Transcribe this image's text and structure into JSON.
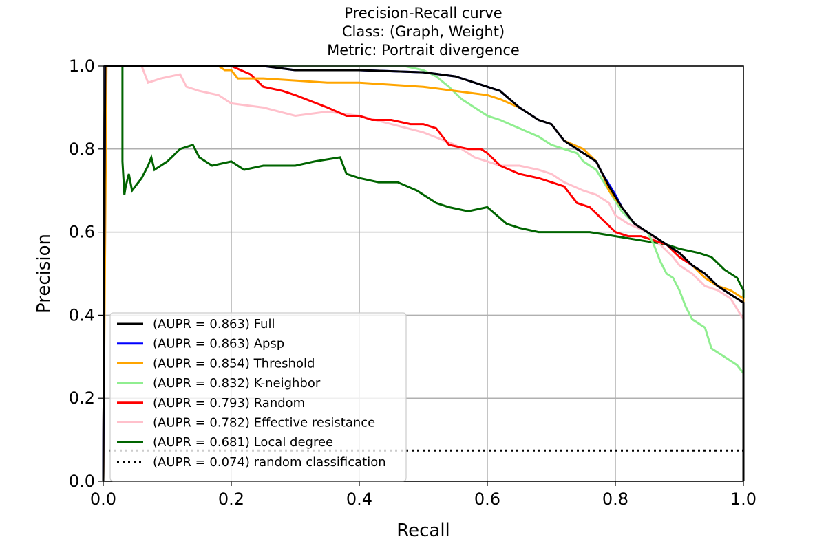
{
  "chart_data": {
    "type": "line",
    "title_lines": [
      "Precision-Recall curve",
      "Class: (Graph, Weight)",
      "Metric: Portrait divergence"
    ],
    "xlabel": "Recall",
    "ylabel": "Precision",
    "xlim": [
      0.0,
      1.0
    ],
    "ylim": [
      0.0,
      1.0
    ],
    "xticks": [
      "0.0",
      "0.2",
      "0.4",
      "0.6",
      "0.8",
      "1.0"
    ],
    "yticks": [
      "0.0",
      "0.2",
      "0.4",
      "0.6",
      "0.8",
      "1.0"
    ],
    "grid": true,
    "legend_position": "lower-left",
    "series": [
      {
        "name": "(AUPR = 0.863) Full",
        "color": "#000000",
        "dash": "solid",
        "points": [
          [
            0.0,
            0.0
          ],
          [
            0.003,
            1.0
          ],
          [
            0.1,
            1.0
          ],
          [
            0.25,
            1.0
          ],
          [
            0.3,
            0.99
          ],
          [
            0.4,
            0.99
          ],
          [
            0.5,
            0.985
          ],
          [
            0.55,
            0.975
          ],
          [
            0.6,
            0.95
          ],
          [
            0.62,
            0.94
          ],
          [
            0.65,
            0.9
          ],
          [
            0.68,
            0.87
          ],
          [
            0.7,
            0.86
          ],
          [
            0.72,
            0.82
          ],
          [
            0.75,
            0.79
          ],
          [
            0.77,
            0.77
          ],
          [
            0.78,
            0.74
          ],
          [
            0.79,
            0.71
          ],
          [
            0.81,
            0.66
          ],
          [
            0.83,
            0.62
          ],
          [
            0.85,
            0.6
          ],
          [
            0.88,
            0.57
          ],
          [
            0.9,
            0.55
          ],
          [
            0.92,
            0.52
          ],
          [
            0.94,
            0.5
          ],
          [
            0.96,
            0.47
          ],
          [
            0.98,
            0.45
          ],
          [
            1.0,
            0.43
          ],
          [
            1.0,
            0.0
          ]
        ]
      },
      {
        "name": "(AUPR = 0.863) Apsp",
        "color": "#0000ff",
        "dash": "solid",
        "points": [
          [
            0.0,
            0.0
          ],
          [
            0.003,
            1.0
          ],
          [
            0.1,
            1.0
          ],
          [
            0.25,
            1.0
          ],
          [
            0.3,
            0.99
          ],
          [
            0.4,
            0.99
          ],
          [
            0.5,
            0.985
          ],
          [
            0.55,
            0.975
          ],
          [
            0.6,
            0.95
          ],
          [
            0.62,
            0.94
          ],
          [
            0.65,
            0.9
          ],
          [
            0.68,
            0.87
          ],
          [
            0.7,
            0.86
          ],
          [
            0.72,
            0.82
          ],
          [
            0.75,
            0.79
          ],
          [
            0.77,
            0.77
          ],
          [
            0.78,
            0.74
          ],
          [
            0.8,
            0.69
          ],
          [
            0.81,
            0.66
          ],
          [
            0.83,
            0.62
          ],
          [
            0.85,
            0.6
          ],
          [
            0.88,
            0.57
          ],
          [
            0.9,
            0.55
          ],
          [
            0.92,
            0.52
          ],
          [
            0.94,
            0.5
          ],
          [
            0.96,
            0.47
          ],
          [
            0.98,
            0.45
          ],
          [
            1.0,
            0.43
          ],
          [
            1.0,
            0.0
          ]
        ]
      },
      {
        "name": "(AUPR = 0.854) Threshold",
        "color": "#ffa500",
        "dash": "solid",
        "points": [
          [
            0.0,
            0.0
          ],
          [
            0.005,
            1.0
          ],
          [
            0.18,
            1.0
          ],
          [
            0.19,
            0.99
          ],
          [
            0.2,
            0.99
          ],
          [
            0.21,
            0.97
          ],
          [
            0.25,
            0.97
          ],
          [
            0.3,
            0.965
          ],
          [
            0.35,
            0.96
          ],
          [
            0.4,
            0.96
          ],
          [
            0.45,
            0.955
          ],
          [
            0.5,
            0.95
          ],
          [
            0.55,
            0.94
          ],
          [
            0.6,
            0.93
          ],
          [
            0.62,
            0.92
          ],
          [
            0.65,
            0.9
          ],
          [
            0.68,
            0.87
          ],
          [
            0.7,
            0.86
          ],
          [
            0.72,
            0.82
          ],
          [
            0.75,
            0.8
          ],
          [
            0.77,
            0.77
          ],
          [
            0.78,
            0.74
          ],
          [
            0.79,
            0.7
          ],
          [
            0.81,
            0.66
          ],
          [
            0.83,
            0.62
          ],
          [
            0.85,
            0.6
          ],
          [
            0.88,
            0.57
          ],
          [
            0.9,
            0.55
          ],
          [
            0.92,
            0.52
          ],
          [
            0.94,
            0.49
          ],
          [
            0.96,
            0.47
          ],
          [
            0.98,
            0.46
          ],
          [
            1.0,
            0.44
          ],
          [
            1.0,
            0.0
          ]
        ]
      },
      {
        "name": "(AUPR = 0.832) K-neighbor",
        "color": "#90ee90",
        "dash": "solid",
        "points": [
          [
            0.0,
            0.0
          ],
          [
            0.003,
            1.0
          ],
          [
            0.47,
            1.0
          ],
          [
            0.5,
            0.99
          ],
          [
            0.52,
            0.975
          ],
          [
            0.54,
            0.95
          ],
          [
            0.56,
            0.92
          ],
          [
            0.58,
            0.9
          ],
          [
            0.6,
            0.88
          ],
          [
            0.62,
            0.87
          ],
          [
            0.65,
            0.85
          ],
          [
            0.68,
            0.83
          ],
          [
            0.7,
            0.81
          ],
          [
            0.72,
            0.8
          ],
          [
            0.74,
            0.79
          ],
          [
            0.75,
            0.77
          ],
          [
            0.77,
            0.75
          ],
          [
            0.79,
            0.7
          ],
          [
            0.81,
            0.65
          ],
          [
            0.83,
            0.62
          ],
          [
            0.85,
            0.6
          ],
          [
            0.86,
            0.57
          ],
          [
            0.87,
            0.53
          ],
          [
            0.88,
            0.5
          ],
          [
            0.89,
            0.49
          ],
          [
            0.9,
            0.46
          ],
          [
            0.91,
            0.42
          ],
          [
            0.92,
            0.39
          ],
          [
            0.94,
            0.37
          ],
          [
            0.95,
            0.32
          ],
          [
            0.97,
            0.3
          ],
          [
            0.99,
            0.28
          ],
          [
            1.0,
            0.26
          ],
          [
            1.0,
            0.0
          ]
        ]
      },
      {
        "name": "(AUPR = 0.793) Random",
        "color": "#ff0000",
        "dash": "solid",
        "points": [
          [
            0.0,
            0.0
          ],
          [
            0.003,
            1.0
          ],
          [
            0.2,
            1.0
          ],
          [
            0.23,
            0.98
          ],
          [
            0.25,
            0.95
          ],
          [
            0.28,
            0.94
          ],
          [
            0.3,
            0.93
          ],
          [
            0.35,
            0.9
          ],
          [
            0.38,
            0.88
          ],
          [
            0.4,
            0.88
          ],
          [
            0.42,
            0.87
          ],
          [
            0.45,
            0.87
          ],
          [
            0.48,
            0.86
          ],
          [
            0.5,
            0.86
          ],
          [
            0.52,
            0.85
          ],
          [
            0.54,
            0.81
          ],
          [
            0.57,
            0.8
          ],
          [
            0.59,
            0.8
          ],
          [
            0.6,
            0.79
          ],
          [
            0.62,
            0.76
          ],
          [
            0.65,
            0.74
          ],
          [
            0.68,
            0.73
          ],
          [
            0.7,
            0.72
          ],
          [
            0.72,
            0.71
          ],
          [
            0.74,
            0.67
          ],
          [
            0.76,
            0.66
          ],
          [
            0.78,
            0.63
          ],
          [
            0.8,
            0.6
          ],
          [
            0.82,
            0.59
          ],
          [
            0.84,
            0.59
          ],
          [
            0.86,
            0.58
          ],
          [
            0.88,
            0.57
          ],
          [
            0.9,
            0.54
          ],
          [
            0.92,
            0.52
          ],
          [
            0.94,
            0.49
          ],
          [
            0.96,
            0.47
          ],
          [
            0.98,
            0.45
          ],
          [
            1.0,
            0.43
          ],
          [
            1.0,
            0.0
          ]
        ]
      },
      {
        "name": "(AUPR = 0.782) Effective resistance",
        "color": "#ffc0cb",
        "dash": "solid",
        "points": [
          [
            0.0,
            0.0
          ],
          [
            0.003,
            1.0
          ],
          [
            0.06,
            1.0
          ],
          [
            0.07,
            0.96
          ],
          [
            0.09,
            0.97
          ],
          [
            0.12,
            0.98
          ],
          [
            0.13,
            0.95
          ],
          [
            0.15,
            0.94
          ],
          [
            0.18,
            0.93
          ],
          [
            0.2,
            0.91
          ],
          [
            0.25,
            0.9
          ],
          [
            0.3,
            0.88
          ],
          [
            0.35,
            0.89
          ],
          [
            0.4,
            0.88
          ],
          [
            0.45,
            0.86
          ],
          [
            0.5,
            0.84
          ],
          [
            0.55,
            0.81
          ],
          [
            0.58,
            0.78
          ],
          [
            0.6,
            0.77
          ],
          [
            0.62,
            0.76
          ],
          [
            0.65,
            0.76
          ],
          [
            0.68,
            0.75
          ],
          [
            0.7,
            0.74
          ],
          [
            0.72,
            0.72
          ],
          [
            0.75,
            0.7
          ],
          [
            0.77,
            0.69
          ],
          [
            0.79,
            0.67
          ],
          [
            0.8,
            0.64
          ],
          [
            0.82,
            0.62
          ],
          [
            0.85,
            0.6
          ],
          [
            0.87,
            0.57
          ],
          [
            0.89,
            0.54
          ],
          [
            0.9,
            0.52
          ],
          [
            0.92,
            0.5
          ],
          [
            0.94,
            0.47
          ],
          [
            0.96,
            0.46
          ],
          [
            0.98,
            0.44
          ],
          [
            1.0,
            0.39
          ],
          [
            1.0,
            0.0
          ]
        ]
      },
      {
        "name": "(AUPR = 0.681) Local degree",
        "color": "#006400",
        "dash": "solid",
        "points": [
          [
            0.0,
            0.0
          ],
          [
            0.003,
            1.0
          ],
          [
            0.03,
            1.0
          ],
          [
            0.03,
            0.77
          ],
          [
            0.033,
            0.69
          ],
          [
            0.035,
            0.71
          ],
          [
            0.04,
            0.74
          ],
          [
            0.045,
            0.7
          ],
          [
            0.06,
            0.73
          ],
          [
            0.07,
            0.76
          ],
          [
            0.075,
            0.78
          ],
          [
            0.08,
            0.75
          ],
          [
            0.1,
            0.77
          ],
          [
            0.12,
            0.8
          ],
          [
            0.14,
            0.81
          ],
          [
            0.15,
            0.78
          ],
          [
            0.17,
            0.76
          ],
          [
            0.2,
            0.77
          ],
          [
            0.22,
            0.75
          ],
          [
            0.25,
            0.76
          ],
          [
            0.3,
            0.76
          ],
          [
            0.33,
            0.77
          ],
          [
            0.37,
            0.78
          ],
          [
            0.38,
            0.74
          ],
          [
            0.4,
            0.73
          ],
          [
            0.43,
            0.72
          ],
          [
            0.46,
            0.72
          ],
          [
            0.49,
            0.7
          ],
          [
            0.52,
            0.67
          ],
          [
            0.54,
            0.66
          ],
          [
            0.57,
            0.65
          ],
          [
            0.6,
            0.66
          ],
          [
            0.63,
            0.62
          ],
          [
            0.65,
            0.61
          ],
          [
            0.68,
            0.6
          ],
          [
            0.72,
            0.6
          ],
          [
            0.76,
            0.6
          ],
          [
            0.8,
            0.59
          ],
          [
            0.84,
            0.58
          ],
          [
            0.88,
            0.57
          ],
          [
            0.9,
            0.56
          ],
          [
            0.93,
            0.55
          ],
          [
            0.95,
            0.54
          ],
          [
            0.97,
            0.51
          ],
          [
            0.99,
            0.49
          ],
          [
            1.0,
            0.46
          ],
          [
            1.0,
            0.0
          ]
        ]
      },
      {
        "name": "(AUPR = 0.074) random classification",
        "color": "#000000",
        "dash": "dotted",
        "points": [
          [
            0.0,
            0.074
          ],
          [
            1.0,
            0.074
          ]
        ]
      }
    ]
  }
}
